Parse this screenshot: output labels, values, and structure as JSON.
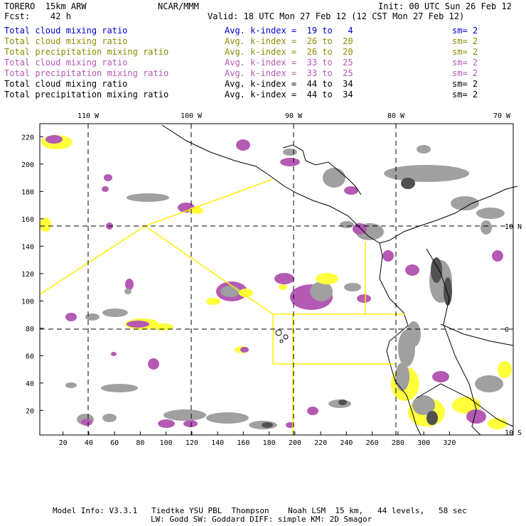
{
  "header": {
    "model": "TORERO  15km ARW",
    "org": "NCAR/MMM",
    "init": "Init: 00 UTC Sun 26 Feb 12",
    "fcst": "Fcst:    42 h",
    "valid": "Valid: 18 UTC Mon 27 Feb 12 (12 CST Mon 27 Feb 12)"
  },
  "fields": [
    {
      "name": "Total cloud mixing ratio",
      "kindex": "Avg. k-index =  19 to   4",
      "sm": "sm= 2",
      "color": "#0000c8"
    },
    {
      "name": "Total cloud mixing ratio",
      "kindex": "Avg. k-index =  26 to  20",
      "sm": "sm= 2",
      "color": "#8c8c00"
    },
    {
      "name": "Total precipitation mixing ratio",
      "kindex": "Avg. k-index =  26 to  20",
      "sm": "sm= 2",
      "color": "#8c8c00"
    },
    {
      "name": "Total cloud mixing ratio",
      "kindex": "Avg. k-index =  33 to  25",
      "sm": "sm= 2",
      "color": "#b45ab4"
    },
    {
      "name": "Total precipitation mixing ratio",
      "kindex": "Avg. k-index =  33 to  25",
      "sm": "sm= 2",
      "color": "#b45ab4"
    },
    {
      "name": "Total cloud mixing ratio",
      "kindex": "Avg. k-index =  44 to  34",
      "sm": "sm= 2",
      "color": "#000000"
    },
    {
      "name": "Total precipitation mixing ratio",
      "kindex": "Avg. k-index =  44 to  34",
      "sm": "sm= 2",
      "color": "#000000"
    }
  ],
  "axes": {
    "lon_labels": [
      "110 W",
      "100 W",
      "90 W",
      "80 W",
      "70 W"
    ],
    "lat_labels": [
      "10 N",
      "0",
      "10 S"
    ],
    "x_ticks": [
      "20",
      "40",
      "60",
      "80",
      "100",
      "120",
      "140",
      "160",
      "180",
      "200",
      "220",
      "240",
      "260",
      "280",
      "300",
      "320"
    ],
    "y_ticks": [
      "20",
      "40",
      "60",
      "80",
      "100",
      "120",
      "140",
      "160",
      "180",
      "200",
      "220"
    ]
  },
  "footer": {
    "line1": "Model Info: V3.3.1   Tiedtke YSU PBL  Thompson    Noah LSM  15 km,   44 levels,   58 sec",
    "line2": "LW: Godd SW: Goddard DIFF: simple KM: 2D Smagor"
  },
  "colors": {
    "cloud_gray": "#a0a0a0",
    "dark_gray": "#505050",
    "purple": "#b45ab4",
    "yellow": "#ffff3c",
    "domain_line": "#ffee00",
    "coast": "#000000"
  }
}
